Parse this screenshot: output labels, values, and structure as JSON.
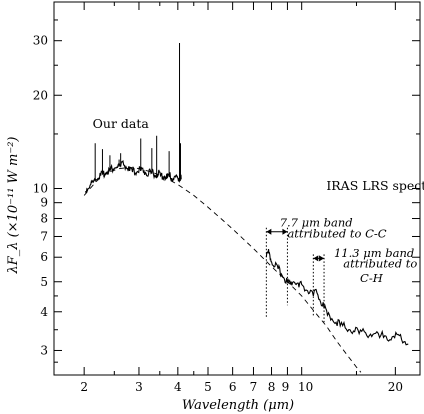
{
  "chart_data": {
    "type": "line",
    "xlabel": "Wavelength (μm)",
    "ylabel": "λF_λ (×10⁻¹¹ W m⁻²)",
    "xscale": "log",
    "yscale": "log",
    "xlim": [
      1.6,
      24
    ],
    "ylim": [
      2.5,
      40
    ],
    "x_ticks": [
      2,
      3,
      4,
      5,
      6,
      7,
      8,
      9,
      10,
      20
    ],
    "x_tick_labels": [
      "2",
      "3",
      "4",
      "5",
      "6",
      "7",
      "8",
      "9",
      "10",
      "20"
    ],
    "y_ticks": [
      3,
      4,
      5,
      6,
      7,
      8,
      9,
      10,
      20,
      30
    ],
    "y_tick_labels": [
      "3",
      "4",
      "5",
      "6",
      "7",
      "8",
      "9",
      "10",
      "20",
      "30"
    ],
    "grid": false,
    "series": [
      {
        "name": "Our data",
        "style": "solid",
        "x": [
          2.02,
          2.06,
          2.1,
          2.14,
          2.18,
          2.22,
          2.26,
          2.3,
          2.34,
          2.38,
          2.42,
          2.46,
          2.5,
          2.56,
          2.62,
          2.68,
          2.74,
          2.8,
          2.86,
          2.92,
          2.98,
          3.04,
          3.1,
          3.16,
          3.22,
          3.28,
          3.34,
          3.4,
          3.46,
          3.52,
          3.58,
          3.64,
          3.7,
          3.76,
          3.82,
          3.88,
          3.94,
          4.0,
          4.04,
          4.08,
          4.1
        ],
        "y": [
          9.8,
          10.0,
          10.3,
          10.5,
          10.7,
          10.8,
          11.0,
          11.1,
          11.2,
          11.3,
          11.4,
          11.5,
          11.6,
          11.7,
          11.8,
          11.9,
          11.6,
          11.4,
          11.3,
          11.2,
          11.3,
          11.4,
          11.3,
          11.2,
          11.1,
          11.2,
          11.1,
          11.0,
          11.1,
          11.0,
          10.9,
          10.9,
          10.8,
          10.9,
          10.8,
          10.7,
          10.9,
          10.8,
          10.7,
          10.8,
          10.7
        ]
      },
      {
        "name": "IRAS LRS spectrum",
        "style": "solid",
        "x": [
          7.7,
          7.8,
          7.9,
          8.0,
          8.2,
          8.4,
          8.6,
          8.8,
          9.0,
          9.2,
          9.4,
          9.6,
          9.8,
          10.0,
          10.3,
          10.6,
          10.9,
          11.2,
          11.5,
          11.8,
          12.1,
          12.5,
          12.9,
          13.3,
          13.8,
          14.3,
          14.8,
          15.3,
          15.9,
          16.5,
          17.1,
          17.8,
          18.5,
          19.2,
          19.9,
          20.6,
          21.3,
          22.0
        ],
        "y": [
          6.0,
          6.2,
          6.1,
          5.8,
          5.6,
          5.5,
          5.3,
          5.1,
          5.0,
          4.9,
          5.0,
          4.9,
          4.8,
          4.9,
          4.7,
          4.6,
          4.5,
          4.6,
          4.3,
          4.1,
          3.9,
          3.8,
          3.7,
          3.6,
          3.55,
          3.5,
          3.45,
          3.4,
          3.45,
          3.35,
          3.4,
          3.3,
          3.35,
          3.25,
          3.3,
          3.35,
          3.2,
          3.15
        ]
      },
      {
        "name": "",
        "style": "dashed",
        "x": [
          2.0,
          2.2,
          2.4,
          2.6,
          2.8,
          3.0,
          3.3,
          3.6,
          4.0,
          4.5,
          5.0,
          5.5,
          6.0,
          7.0,
          8.0,
          9.0,
          10.0,
          11.0,
          12.0,
          13.0,
          14.0,
          15.0,
          15.5
        ],
        "y": [
          9.5,
          10.6,
          11.3,
          11.6,
          11.7,
          11.6,
          11.3,
          10.9,
          10.3,
          9.5,
          8.7,
          8.0,
          7.4,
          6.4,
          5.6,
          5.0,
          4.5,
          4.0,
          3.6,
          3.2,
          2.9,
          2.65,
          2.55
        ]
      }
    ],
    "spikes": [
      {
        "x": 2.17,
        "y": 14.0
      },
      {
        "x": 2.29,
        "y": 13.4
      },
      {
        "x": 2.42,
        "y": 12.8
      },
      {
        "x": 2.59,
        "y": 12.4
      },
      {
        "x": 2.62,
        "y": 13.0
      },
      {
        "x": 3.04,
        "y": 14.5
      },
      {
        "x": 3.3,
        "y": 13.5
      },
      {
        "x": 3.42,
        "y": 14.8
      },
      {
        "x": 3.75,
        "y": 13.2
      },
      {
        "x": 4.05,
        "y": 29.5
      },
      {
        "x": 4.08,
        "y": 14.0
      }
    ],
    "annotations": [
      {
        "text": "Our data",
        "x": 2.13,
        "y": 15.7
      },
      {
        "text": "IRAS LRS spectrum",
        "x": 12.0,
        "y": 9.9
      },
      {
        "text": "7.7 μm band",
        "x": 8.5,
        "y": 7.55
      },
      {
        "text": "attributed to C-C",
        "x": 9.0,
        "y": 6.95
      },
      {
        "text": "11.3 μm band",
        "x": 12.7,
        "y": 6.0
      },
      {
        "text": "attributed to",
        "x": 13.6,
        "y": 5.55
      },
      {
        "text": "C-H",
        "x": 15.4,
        "y": 5.0
      }
    ],
    "band_markers": [
      {
        "label": "7.7 μm band",
        "x_from": 7.7,
        "x_to": 9.0,
        "arrow_y": 7.25
      },
      {
        "label": "11.3 μm band",
        "x_from": 10.9,
        "x_to": 11.8,
        "arrow_y": 5.95
      }
    ]
  }
}
